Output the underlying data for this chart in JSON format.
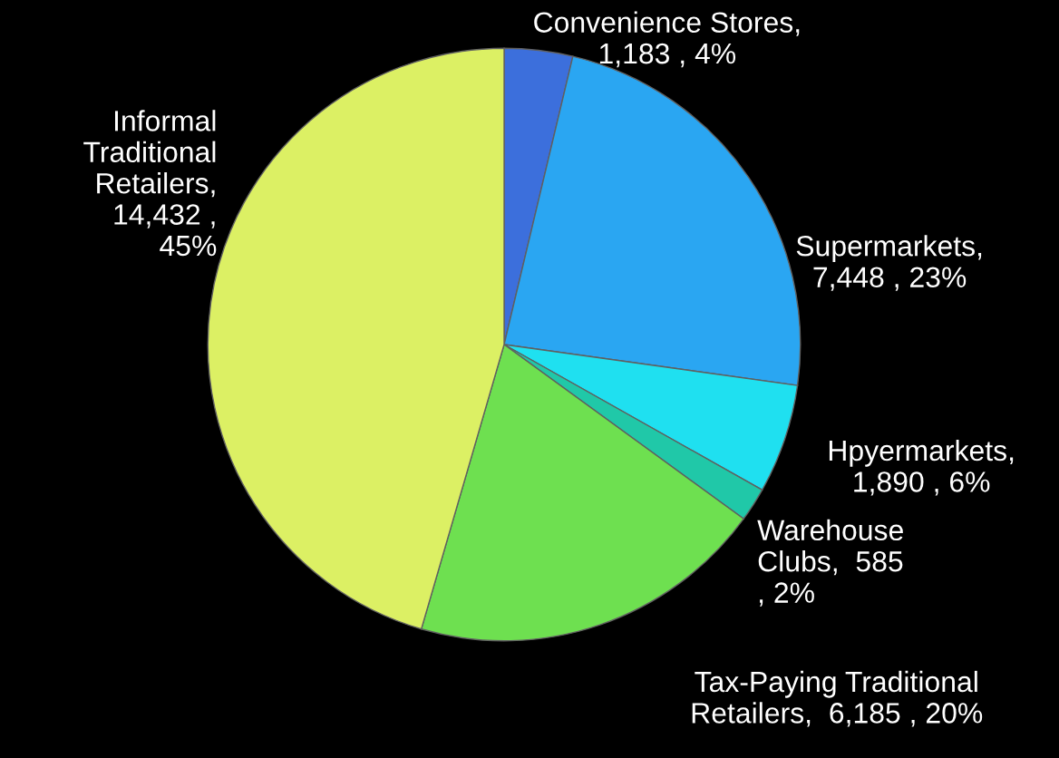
{
  "chart_data": {
    "type": "pie",
    "categories": [
      "Convenience Stores,\n1,183 , 4%",
      "Supermarkets,\n7,448 , 23%",
      "Hpyermarkets,\n1,890 , 6%",
      "Warehouse\nClubs,  585\n, 2%",
      "Tax-Paying Traditional\nRetailers,  6,185 , 20%",
      "Informal\nTraditional\nRetailers,\n14,432 ,\n45%"
    ],
    "values": [
      1183,
      7448,
      1890,
      585,
      6185,
      14432
    ],
    "colors": [
      "#3c6fdc",
      "#2aa6f2",
      "#1fe0f0",
      "#20c8a8",
      "#6ee050",
      "#dcf064"
    ]
  }
}
